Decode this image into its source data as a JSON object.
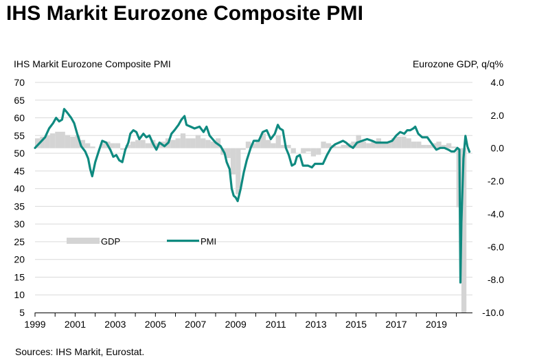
{
  "page": {
    "title": "IHS Markit Eurozone Composite PMI",
    "source": "Sources: IHS Markit, Eurostat."
  },
  "chart_data": {
    "type": "line",
    "left_axis_label": "IHS Markit Eurozone Composite  PMI",
    "right_axis_label": "Eurozone GDP, q/q%",
    "left_ylim": [
      5,
      70
    ],
    "left_ticks": [
      "70",
      "65",
      "60",
      "55",
      "50",
      "45",
      "40",
      "35",
      "30",
      "25",
      "20",
      "15",
      "10",
      "5"
    ],
    "right_ylim": [
      -10,
      4
    ],
    "right_ticks": [
      "4.0",
      "2.0",
      "0.0",
      "-2.0",
      "-4.0",
      "-6.0",
      "-8.0",
      "-10.0"
    ],
    "x_ticks": [
      "1999",
      "2001",
      "2003",
      "2005",
      "2007",
      "2009",
      "2011",
      "2013",
      "2015",
      "2017",
      "2019"
    ],
    "xlim": [
      1999.0,
      2020.8
    ],
    "grid": true,
    "legend": {
      "gdp_label": "GDP",
      "pmi_label": "PMI",
      "placement": "middle-left"
    },
    "colors": {
      "pmi": "#0f8a80",
      "gdp": "#d4d4d4",
      "grid": "#d9d9d9"
    },
    "series": [
      {
        "name": "PMI",
        "axis": "left",
        "points": [
          [
            1999.0,
            51.5
          ],
          [
            1999.25,
            53.0
          ],
          [
            1999.5,
            54.5
          ],
          [
            1999.7,
            57.0
          ],
          [
            1999.9,
            58.5
          ],
          [
            2000.05,
            60.0
          ],
          [
            2000.2,
            59.0
          ],
          [
            2000.35,
            59.5
          ],
          [
            2000.45,
            62.5
          ],
          [
            2000.6,
            61.5
          ],
          [
            2000.8,
            60.0
          ],
          [
            2000.95,
            58.5
          ],
          [
            2001.1,
            55.5
          ],
          [
            2001.3,
            52.0
          ],
          [
            2001.5,
            50.5
          ],
          [
            2001.65,
            48.5
          ],
          [
            2001.75,
            45.5
          ],
          [
            2001.85,
            43.5
          ],
          [
            2002.0,
            47.5
          ],
          [
            2002.2,
            51.0
          ],
          [
            2002.35,
            53.5
          ],
          [
            2002.55,
            53.0
          ],
          [
            2002.75,
            51.0
          ],
          [
            2002.9,
            49.0
          ],
          [
            2003.05,
            49.5
          ],
          [
            2003.2,
            48.0
          ],
          [
            2003.35,
            47.5
          ],
          [
            2003.5,
            51.0
          ],
          [
            2003.65,
            53.0
          ],
          [
            2003.75,
            55.5
          ],
          [
            2003.9,
            56.5
          ],
          [
            2004.05,
            56.0
          ],
          [
            2004.2,
            54.0
          ],
          [
            2004.4,
            55.5
          ],
          [
            2004.55,
            54.5
          ],
          [
            2004.7,
            55.0
          ],
          [
            2004.9,
            52.5
          ],
          [
            2005.05,
            51.0
          ],
          [
            2005.2,
            53.0
          ],
          [
            2005.45,
            52.0
          ],
          [
            2005.65,
            53.0
          ],
          [
            2005.8,
            55.5
          ],
          [
            2005.95,
            56.5
          ],
          [
            2006.15,
            58.0
          ],
          [
            2006.3,
            59.5
          ],
          [
            2006.45,
            60.5
          ],
          [
            2006.55,
            58.0
          ],
          [
            2006.75,
            57.5
          ],
          [
            2006.95,
            57.0
          ],
          [
            2007.2,
            57.5
          ],
          [
            2007.4,
            56.0
          ],
          [
            2007.55,
            57.5
          ],
          [
            2007.7,
            55.0
          ],
          [
            2007.85,
            54.0
          ],
          [
            2008.0,
            53.0
          ],
          [
            2008.25,
            52.0
          ],
          [
            2008.45,
            50.0
          ],
          [
            2008.55,
            47.5
          ],
          [
            2008.7,
            45.5
          ],
          [
            2008.8,
            40.0
          ],
          [
            2008.9,
            38.0
          ],
          [
            2009.0,
            37.5
          ],
          [
            2009.1,
            36.5
          ],
          [
            2009.25,
            40.0
          ],
          [
            2009.4,
            44.5
          ],
          [
            2009.55,
            48.0
          ],
          [
            2009.75,
            51.5
          ],
          [
            2009.9,
            53.5
          ],
          [
            2010.15,
            53.5
          ],
          [
            2010.35,
            56.0
          ],
          [
            2010.55,
            56.5
          ],
          [
            2010.75,
            54.0
          ],
          [
            2010.95,
            55.5
          ],
          [
            2011.1,
            58.0
          ],
          [
            2011.2,
            57.0
          ],
          [
            2011.35,
            56.5
          ],
          [
            2011.5,
            51.5
          ],
          [
            2011.65,
            49.5
          ],
          [
            2011.8,
            46.5
          ],
          [
            2011.95,
            47.0
          ],
          [
            2012.05,
            49.0
          ],
          [
            2012.2,
            49.5
          ],
          [
            2012.35,
            46.5
          ],
          [
            2012.6,
            46.5
          ],
          [
            2012.8,
            46.0
          ],
          [
            2012.95,
            47.0
          ],
          [
            2013.15,
            47.0
          ],
          [
            2013.35,
            47.0
          ],
          [
            2013.55,
            49.5
          ],
          [
            2013.75,
            51.5
          ],
          [
            2013.95,
            52.5
          ],
          [
            2014.15,
            53.0
          ],
          [
            2014.35,
            53.5
          ],
          [
            2014.5,
            53.0
          ],
          [
            2014.7,
            52.0
          ],
          [
            2014.85,
            51.5
          ],
          [
            2015.05,
            53.0
          ],
          [
            2015.3,
            53.5
          ],
          [
            2015.55,
            54.0
          ],
          [
            2015.8,
            53.5
          ],
          [
            2016.0,
            53.0
          ],
          [
            2016.3,
            53.0
          ],
          [
            2016.55,
            53.0
          ],
          [
            2016.8,
            53.5
          ],
          [
            2017.0,
            55.0
          ],
          [
            2017.2,
            56.0
          ],
          [
            2017.4,
            55.5
          ],
          [
            2017.55,
            56.5
          ],
          [
            2017.7,
            56.5
          ],
          [
            2017.85,
            57.0
          ],
          [
            2017.95,
            57.5
          ],
          [
            2018.1,
            55.5
          ],
          [
            2018.3,
            54.5
          ],
          [
            2018.55,
            54.5
          ],
          [
            2018.8,
            52.5
          ],
          [
            2019.0,
            51.0
          ],
          [
            2019.2,
            51.5
          ],
          [
            2019.4,
            51.5
          ],
          [
            2019.6,
            51.0
          ],
          [
            2019.75,
            50.5
          ],
          [
            2019.9,
            50.5
          ],
          [
            2020.05,
            51.5
          ],
          [
            2020.15,
            51.0
          ],
          [
            2020.2,
            13.5
          ],
          [
            2020.25,
            30.5
          ],
          [
            2020.35,
            48.5
          ],
          [
            2020.45,
            54.9
          ],
          [
            2020.55,
            51.9
          ],
          [
            2020.65,
            50.4
          ]
        ]
      },
      {
        "name": "GDP",
        "axis": "right",
        "type": "bar",
        "quarter_start": 1999.0,
        "quarter_step": 0.25,
        "values": [
          0.6,
          0.7,
          0.8,
          0.9,
          1.0,
          1.0,
          0.8,
          0.7,
          0.8,
          0.5,
          0.3,
          0.1,
          0.0,
          0.3,
          0.4,
          0.3,
          0.3,
          -0.1,
          0.2,
          0.4,
          0.5,
          0.5,
          0.3,
          0.5,
          0.3,
          0.4,
          0.6,
          0.5,
          0.6,
          0.9,
          0.6,
          0.6,
          0.8,
          0.6,
          0.5,
          0.4,
          0.6,
          -0.4,
          -0.6,
          -1.6,
          -2.8,
          -0.1,
          0.4,
          0.3,
          0.5,
          0.9,
          0.5,
          0.3,
          0.8,
          0.2,
          0.2,
          -0.3,
          0.0,
          -0.3,
          -0.2,
          -0.5,
          -0.4,
          0.4,
          0.3,
          0.2,
          0.1,
          0.2,
          0.3,
          0.4,
          0.8,
          0.4,
          0.3,
          0.4,
          0.6,
          0.4,
          0.4,
          0.6,
          0.7,
          0.7,
          0.6,
          0.4,
          0.4,
          0.2,
          0.2,
          0.3,
          0.4,
          0.2,
          0.3,
          0.1,
          -3.6,
          -11.8
        ]
      }
    ]
  }
}
